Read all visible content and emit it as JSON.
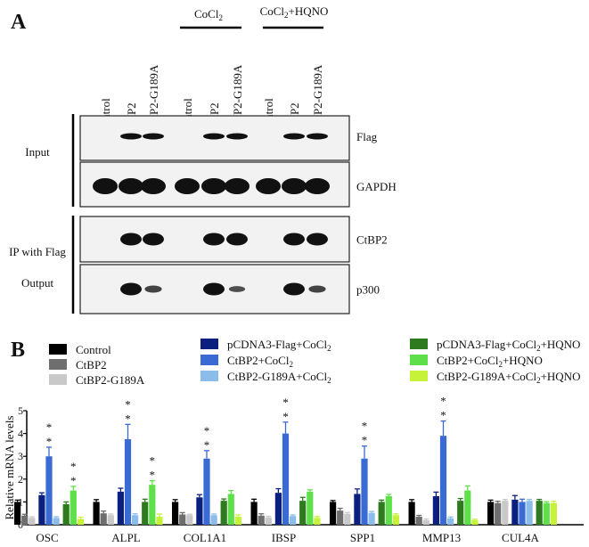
{
  "panel_a": {
    "label": "A",
    "groups": [
      {
        "label": "CoCl",
        "sub": "2",
        "suffix": ""
      },
      {
        "label": "CoCl",
        "sub": "2",
        "suffix": "+HQNO"
      }
    ],
    "lanes": [
      "Control",
      "CtBP2",
      "CtBP2-G189A",
      "Control",
      "CtBP2",
      "CtBP2-G189A",
      "Control",
      "CtBP2",
      "CtBP2-G189A"
    ],
    "section_labels": {
      "input": "Input",
      "ip": "IP with Flag",
      "output": "Output"
    },
    "blots": [
      {
        "name": "Flag",
        "bands": [
          0,
          1,
          1,
          0,
          1,
          1,
          0,
          1,
          1
        ]
      },
      {
        "name": "GAPDH",
        "bands": [
          1,
          1,
          1,
          1,
          1,
          1,
          1,
          1,
          1
        ]
      },
      {
        "name": "CtBP2",
        "bands": [
          0,
          1,
          1,
          0,
          1,
          1,
          0,
          1,
          1
        ]
      },
      {
        "name": "p300",
        "bands": [
          0,
          1,
          0.5,
          0,
          1,
          0.4,
          0,
          1,
          0.5
        ]
      }
    ]
  },
  "chart_data": {
    "type": "bar",
    "panel_label": "B",
    "ylabel": "Relative mRNA levels",
    "xlabel": "",
    "ylim": [
      0,
      5
    ],
    "yticks": [
      "0",
      "1",
      "2",
      "3",
      "4",
      "5"
    ],
    "categories": [
      "OSC",
      "ALPL",
      "COL1A1",
      "IBSP",
      "SPP1",
      "MMP13",
      "CUL4A"
    ],
    "series": [
      {
        "name": "Control",
        "color": "#000000",
        "values": [
          1,
          1,
          1,
          1,
          1,
          1,
          1
        ],
        "errors": [
          0.08,
          0.1,
          0.1,
          0.12,
          0.06,
          0.1,
          0.08
        ]
      },
      {
        "name": "CtBP2",
        "color": "#6e6e6e",
        "values": [
          0.4,
          0.5,
          0.45,
          0.4,
          0.62,
          0.35,
          0.95
        ],
        "errors": [
          0.06,
          0.1,
          0.08,
          0.08,
          0.1,
          0.06,
          0.08
        ]
      },
      {
        "name": "CtBP2-G189A",
        "color": "#c9c9c9",
        "values": [
          0.3,
          0.42,
          0.42,
          0.32,
          0.48,
          0.2,
          1.05
        ],
        "errors": [
          0.05,
          0.05,
          0.04,
          0.05,
          0.06,
          0.05,
          0.06
        ]
      },
      {
        "name": "pCDNA3-Flag+CoCl2",
        "label": "pCDNA3-Flag+CoCl",
        "sub": "2",
        "suffix": "",
        "color": "#0b1f7e",
        "values": [
          1.3,
          1.45,
          1.2,
          1.4,
          1.35,
          1.25,
          1.1
        ],
        "errors": [
          0.1,
          0.15,
          0.12,
          0.18,
          0.22,
          0.18,
          0.18
        ]
      },
      {
        "name": "CtBP2+CoCl2",
        "label": "CtBP2+CoCl",
        "sub": "2",
        "suffix": "",
        "color": "#3a6bd4",
        "values": [
          3.0,
          3.75,
          2.9,
          4.0,
          2.9,
          3.9,
          1.0
        ],
        "errors": [
          0.4,
          0.65,
          0.35,
          0.5,
          0.55,
          0.65,
          0.12
        ],
        "sig": [
          true,
          true,
          true,
          true,
          true,
          true,
          false
        ]
      },
      {
        "name": "CtBP2-G189A+CoCl2",
        "label": "CtBP2-G189A+CoCl",
        "sub": "2",
        "suffix": "",
        "color": "#8cbcea",
        "values": [
          0.3,
          0.42,
          0.42,
          0.38,
          0.52,
          0.28,
          1.05
        ],
        "errors": [
          0.05,
          0.06,
          0.05,
          0.05,
          0.06,
          0.06,
          0.06
        ]
      },
      {
        "name": "pCDNA3-Flag+CoCl2+HQNO",
        "label": "pCDNA3-Flag+CoCl",
        "sub": "2",
        "suffix": "+HQNO",
        "color": "#2f7a1f",
        "values": [
          0.9,
          1.0,
          1.05,
          1.05,
          1.0,
          1.05,
          1.05
        ],
        "errors": [
          0.1,
          0.12,
          0.08,
          0.15,
          0.08,
          0.1,
          0.06
        ]
      },
      {
        "name": "CtBP2+CoCl2+HQNO",
        "label": "CtBP2+CoCl",
        "sub": "2",
        "suffix": "+HQNO",
        "color": "#5fe04a",
        "values": [
          1.5,
          1.75,
          1.35,
          1.45,
          1.25,
          1.5,
          0.95
        ],
        "errors": [
          0.18,
          0.18,
          0.15,
          0.08,
          0.08,
          0.2,
          0.06
        ],
        "sig": [
          true,
          true,
          false,
          false,
          false,
          false,
          false
        ]
      },
      {
        "name": "CtBP2-G189A+CoCl2+HQNO",
        "label": "CtBP2-G189A+CoCl",
        "sub": "2",
        "suffix": "+HQNO",
        "color": "#c6f23a",
        "values": [
          0.25,
          0.35,
          0.35,
          0.3,
          0.42,
          0.2,
          0.95
        ],
        "errors": [
          0.08,
          0.12,
          0.08,
          0.06,
          0.06,
          0.04,
          0.08
        ]
      }
    ],
    "significance_marker": "**",
    "grid": false,
    "legend_position": "top"
  }
}
